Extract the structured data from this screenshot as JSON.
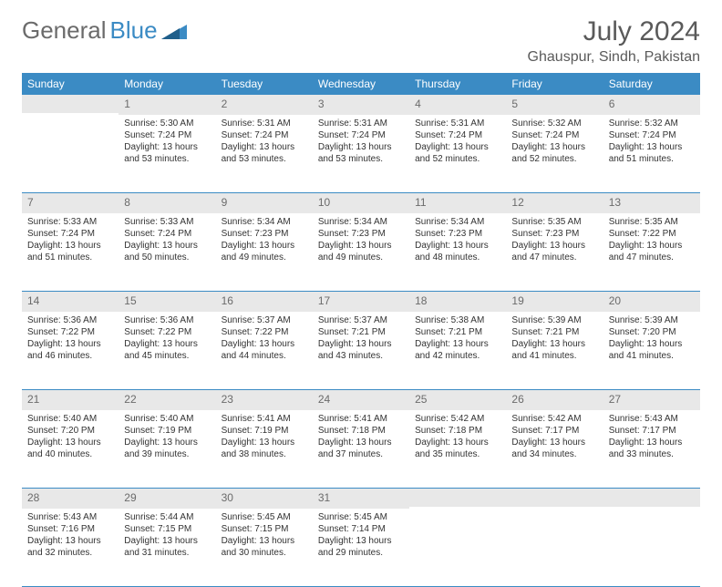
{
  "logo": {
    "text_gray": "General",
    "text_blue": "Blue"
  },
  "title": "July 2024",
  "location": "Ghauspur, Sindh, Pakistan",
  "colors": {
    "header_bg": "#3b8bc4",
    "header_text": "#ffffff",
    "daynum_bg": "#e8e8e8",
    "daynum_text": "#6b6b6b",
    "border": "#3b8bc4",
    "body_text": "#333333"
  },
  "weekdays": [
    "Sunday",
    "Monday",
    "Tuesday",
    "Wednesday",
    "Thursday",
    "Friday",
    "Saturday"
  ],
  "weeks": [
    [
      {
        "n": "",
        "sr": "",
        "ss": "",
        "dl": ""
      },
      {
        "n": "1",
        "sr": "Sunrise: 5:30 AM",
        "ss": "Sunset: 7:24 PM",
        "dl": "Daylight: 13 hours and 53 minutes."
      },
      {
        "n": "2",
        "sr": "Sunrise: 5:31 AM",
        "ss": "Sunset: 7:24 PM",
        "dl": "Daylight: 13 hours and 53 minutes."
      },
      {
        "n": "3",
        "sr": "Sunrise: 5:31 AM",
        "ss": "Sunset: 7:24 PM",
        "dl": "Daylight: 13 hours and 53 minutes."
      },
      {
        "n": "4",
        "sr": "Sunrise: 5:31 AM",
        "ss": "Sunset: 7:24 PM",
        "dl": "Daylight: 13 hours and 52 minutes."
      },
      {
        "n": "5",
        "sr": "Sunrise: 5:32 AM",
        "ss": "Sunset: 7:24 PM",
        "dl": "Daylight: 13 hours and 52 minutes."
      },
      {
        "n": "6",
        "sr": "Sunrise: 5:32 AM",
        "ss": "Sunset: 7:24 PM",
        "dl": "Daylight: 13 hours and 51 minutes."
      }
    ],
    [
      {
        "n": "7",
        "sr": "Sunrise: 5:33 AM",
        "ss": "Sunset: 7:24 PM",
        "dl": "Daylight: 13 hours and 51 minutes."
      },
      {
        "n": "8",
        "sr": "Sunrise: 5:33 AM",
        "ss": "Sunset: 7:24 PM",
        "dl": "Daylight: 13 hours and 50 minutes."
      },
      {
        "n": "9",
        "sr": "Sunrise: 5:34 AM",
        "ss": "Sunset: 7:23 PM",
        "dl": "Daylight: 13 hours and 49 minutes."
      },
      {
        "n": "10",
        "sr": "Sunrise: 5:34 AM",
        "ss": "Sunset: 7:23 PM",
        "dl": "Daylight: 13 hours and 49 minutes."
      },
      {
        "n": "11",
        "sr": "Sunrise: 5:34 AM",
        "ss": "Sunset: 7:23 PM",
        "dl": "Daylight: 13 hours and 48 minutes."
      },
      {
        "n": "12",
        "sr": "Sunrise: 5:35 AM",
        "ss": "Sunset: 7:23 PM",
        "dl": "Daylight: 13 hours and 47 minutes."
      },
      {
        "n": "13",
        "sr": "Sunrise: 5:35 AM",
        "ss": "Sunset: 7:22 PM",
        "dl": "Daylight: 13 hours and 47 minutes."
      }
    ],
    [
      {
        "n": "14",
        "sr": "Sunrise: 5:36 AM",
        "ss": "Sunset: 7:22 PM",
        "dl": "Daylight: 13 hours and 46 minutes."
      },
      {
        "n": "15",
        "sr": "Sunrise: 5:36 AM",
        "ss": "Sunset: 7:22 PM",
        "dl": "Daylight: 13 hours and 45 minutes."
      },
      {
        "n": "16",
        "sr": "Sunrise: 5:37 AM",
        "ss": "Sunset: 7:22 PM",
        "dl": "Daylight: 13 hours and 44 minutes."
      },
      {
        "n": "17",
        "sr": "Sunrise: 5:37 AM",
        "ss": "Sunset: 7:21 PM",
        "dl": "Daylight: 13 hours and 43 minutes."
      },
      {
        "n": "18",
        "sr": "Sunrise: 5:38 AM",
        "ss": "Sunset: 7:21 PM",
        "dl": "Daylight: 13 hours and 42 minutes."
      },
      {
        "n": "19",
        "sr": "Sunrise: 5:39 AM",
        "ss": "Sunset: 7:21 PM",
        "dl": "Daylight: 13 hours and 41 minutes."
      },
      {
        "n": "20",
        "sr": "Sunrise: 5:39 AM",
        "ss": "Sunset: 7:20 PM",
        "dl": "Daylight: 13 hours and 41 minutes."
      }
    ],
    [
      {
        "n": "21",
        "sr": "Sunrise: 5:40 AM",
        "ss": "Sunset: 7:20 PM",
        "dl": "Daylight: 13 hours and 40 minutes."
      },
      {
        "n": "22",
        "sr": "Sunrise: 5:40 AM",
        "ss": "Sunset: 7:19 PM",
        "dl": "Daylight: 13 hours and 39 minutes."
      },
      {
        "n": "23",
        "sr": "Sunrise: 5:41 AM",
        "ss": "Sunset: 7:19 PM",
        "dl": "Daylight: 13 hours and 38 minutes."
      },
      {
        "n": "24",
        "sr": "Sunrise: 5:41 AM",
        "ss": "Sunset: 7:18 PM",
        "dl": "Daylight: 13 hours and 37 minutes."
      },
      {
        "n": "25",
        "sr": "Sunrise: 5:42 AM",
        "ss": "Sunset: 7:18 PM",
        "dl": "Daylight: 13 hours and 35 minutes."
      },
      {
        "n": "26",
        "sr": "Sunrise: 5:42 AM",
        "ss": "Sunset: 7:17 PM",
        "dl": "Daylight: 13 hours and 34 minutes."
      },
      {
        "n": "27",
        "sr": "Sunrise: 5:43 AM",
        "ss": "Sunset: 7:17 PM",
        "dl": "Daylight: 13 hours and 33 minutes."
      }
    ],
    [
      {
        "n": "28",
        "sr": "Sunrise: 5:43 AM",
        "ss": "Sunset: 7:16 PM",
        "dl": "Daylight: 13 hours and 32 minutes."
      },
      {
        "n": "29",
        "sr": "Sunrise: 5:44 AM",
        "ss": "Sunset: 7:15 PM",
        "dl": "Daylight: 13 hours and 31 minutes."
      },
      {
        "n": "30",
        "sr": "Sunrise: 5:45 AM",
        "ss": "Sunset: 7:15 PM",
        "dl": "Daylight: 13 hours and 30 minutes."
      },
      {
        "n": "31",
        "sr": "Sunrise: 5:45 AM",
        "ss": "Sunset: 7:14 PM",
        "dl": "Daylight: 13 hours and 29 minutes."
      },
      {
        "n": "",
        "sr": "",
        "ss": "",
        "dl": ""
      },
      {
        "n": "",
        "sr": "",
        "ss": "",
        "dl": ""
      },
      {
        "n": "",
        "sr": "",
        "ss": "",
        "dl": ""
      }
    ]
  ]
}
